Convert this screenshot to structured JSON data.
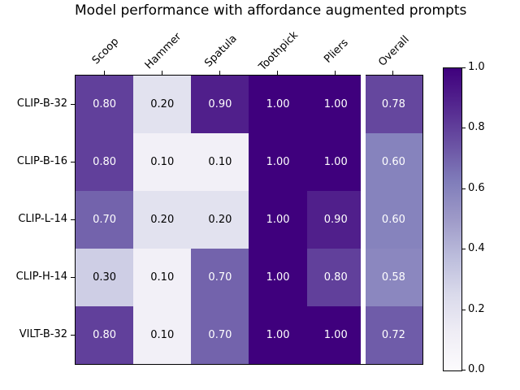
{
  "chart_data": {
    "type": "heatmap",
    "title": "Model performance with affordance augmented prompts",
    "columns": [
      "Scoop",
      "Hammer",
      "Spatula",
      "Toothpick",
      "Pliers",
      "Overall"
    ],
    "rows": [
      "CLIP-B-32",
      "CLIP-B-16",
      "CLIP-L-14",
      "CLIP-H-14",
      "VILT-B-32"
    ],
    "values": [
      [
        0.8,
        0.2,
        0.9,
        1.0,
        1.0,
        0.78
      ],
      [
        0.8,
        0.1,
        0.1,
        1.0,
        1.0,
        0.6
      ],
      [
        0.7,
        0.2,
        0.2,
        1.0,
        0.9,
        0.6
      ],
      [
        0.3,
        0.1,
        0.7,
        1.0,
        0.8,
        0.58
      ],
      [
        0.8,
        0.1,
        0.7,
        1.0,
        1.0,
        0.72
      ]
    ],
    "value_format_decimals": 2,
    "annotation_text_threshold": 0.5,
    "annotation_colors": {
      "light": "#ffffff",
      "dark": "#000000"
    },
    "separator_after_column_index": 4,
    "colormap": {
      "name": "Purples",
      "stops": [
        "#fcfbfd",
        "#efedf5",
        "#dadaeb",
        "#bcbddc",
        "#9e9ac8",
        "#807dba",
        "#6a51a3",
        "#54278f",
        "#3f007d"
      ]
    },
    "colorbar": {
      "min": 0.0,
      "max": 1.0,
      "tick_labels": [
        "0.0",
        "0.2",
        "0.4",
        "0.6",
        "0.8",
        "1.0"
      ],
      "position": "right"
    },
    "grid": false,
    "legend": false
  }
}
